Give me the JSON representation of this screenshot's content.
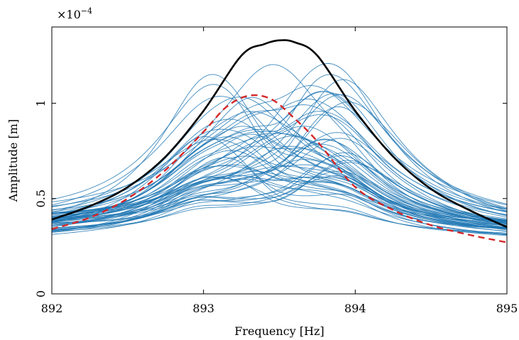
{
  "chart_data": {
    "type": "line",
    "title": "",
    "xlabel": "Frequency [Hz]",
    "ylabel": "Amplitude [m]",
    "y_multiplier": {
      "base": "×10",
      "exponent": "−4"
    },
    "xlim": [
      892,
      895
    ],
    "ylim": [
      0,
      1.4
    ],
    "x_ticks": [
      892,
      893,
      894,
      895
    ],
    "x_tick_labels": [
      "892",
      "893",
      "894",
      "895"
    ],
    "y_ticks": [
      0,
      0.5,
      1
    ],
    "y_tick_labels": [
      "0",
      "0.5",
      "1"
    ],
    "grid": false,
    "legend": "none",
    "colors": {
      "samples": "#1f77b4",
      "envelope": "#000000",
      "mean": "#d62728"
    },
    "sample_curves": {
      "count": 60,
      "style": "thin solid blue",
      "description_points": [
        {
          "x": 892,
          "y_range": [
            0.27,
            0.38
          ]
        },
        {
          "x": 893.5,
          "y_range": [
            0.32,
            1.22
          ]
        },
        {
          "x": 895,
          "y_range": [
            0.24,
            0.34
          ]
        }
      ]
    },
    "series": [
      {
        "role": "envelope",
        "style": "solid black thick",
        "x": [
          892.0,
          892.25,
          892.5,
          892.75,
          893.0,
          893.25,
          893.4,
          893.5,
          893.6,
          893.75,
          894.0,
          894.25,
          894.5,
          894.75,
          895.0
        ],
        "values": [
          0.39,
          0.46,
          0.56,
          0.72,
          0.96,
          1.25,
          1.31,
          1.33,
          1.32,
          1.25,
          0.96,
          0.72,
          0.55,
          0.44,
          0.35
        ]
      },
      {
        "role": "mean",
        "style": "dashed red",
        "x": [
          892.0,
          892.25,
          892.5,
          892.75,
          893.0,
          893.15,
          893.3,
          893.45,
          893.6,
          893.75,
          894.0,
          894.25,
          894.5,
          894.75,
          895.0
        ],
        "values": [
          0.34,
          0.4,
          0.5,
          0.65,
          0.85,
          0.98,
          1.04,
          1.02,
          0.92,
          0.8,
          0.56,
          0.44,
          0.36,
          0.31,
          0.27
        ]
      }
    ]
  }
}
